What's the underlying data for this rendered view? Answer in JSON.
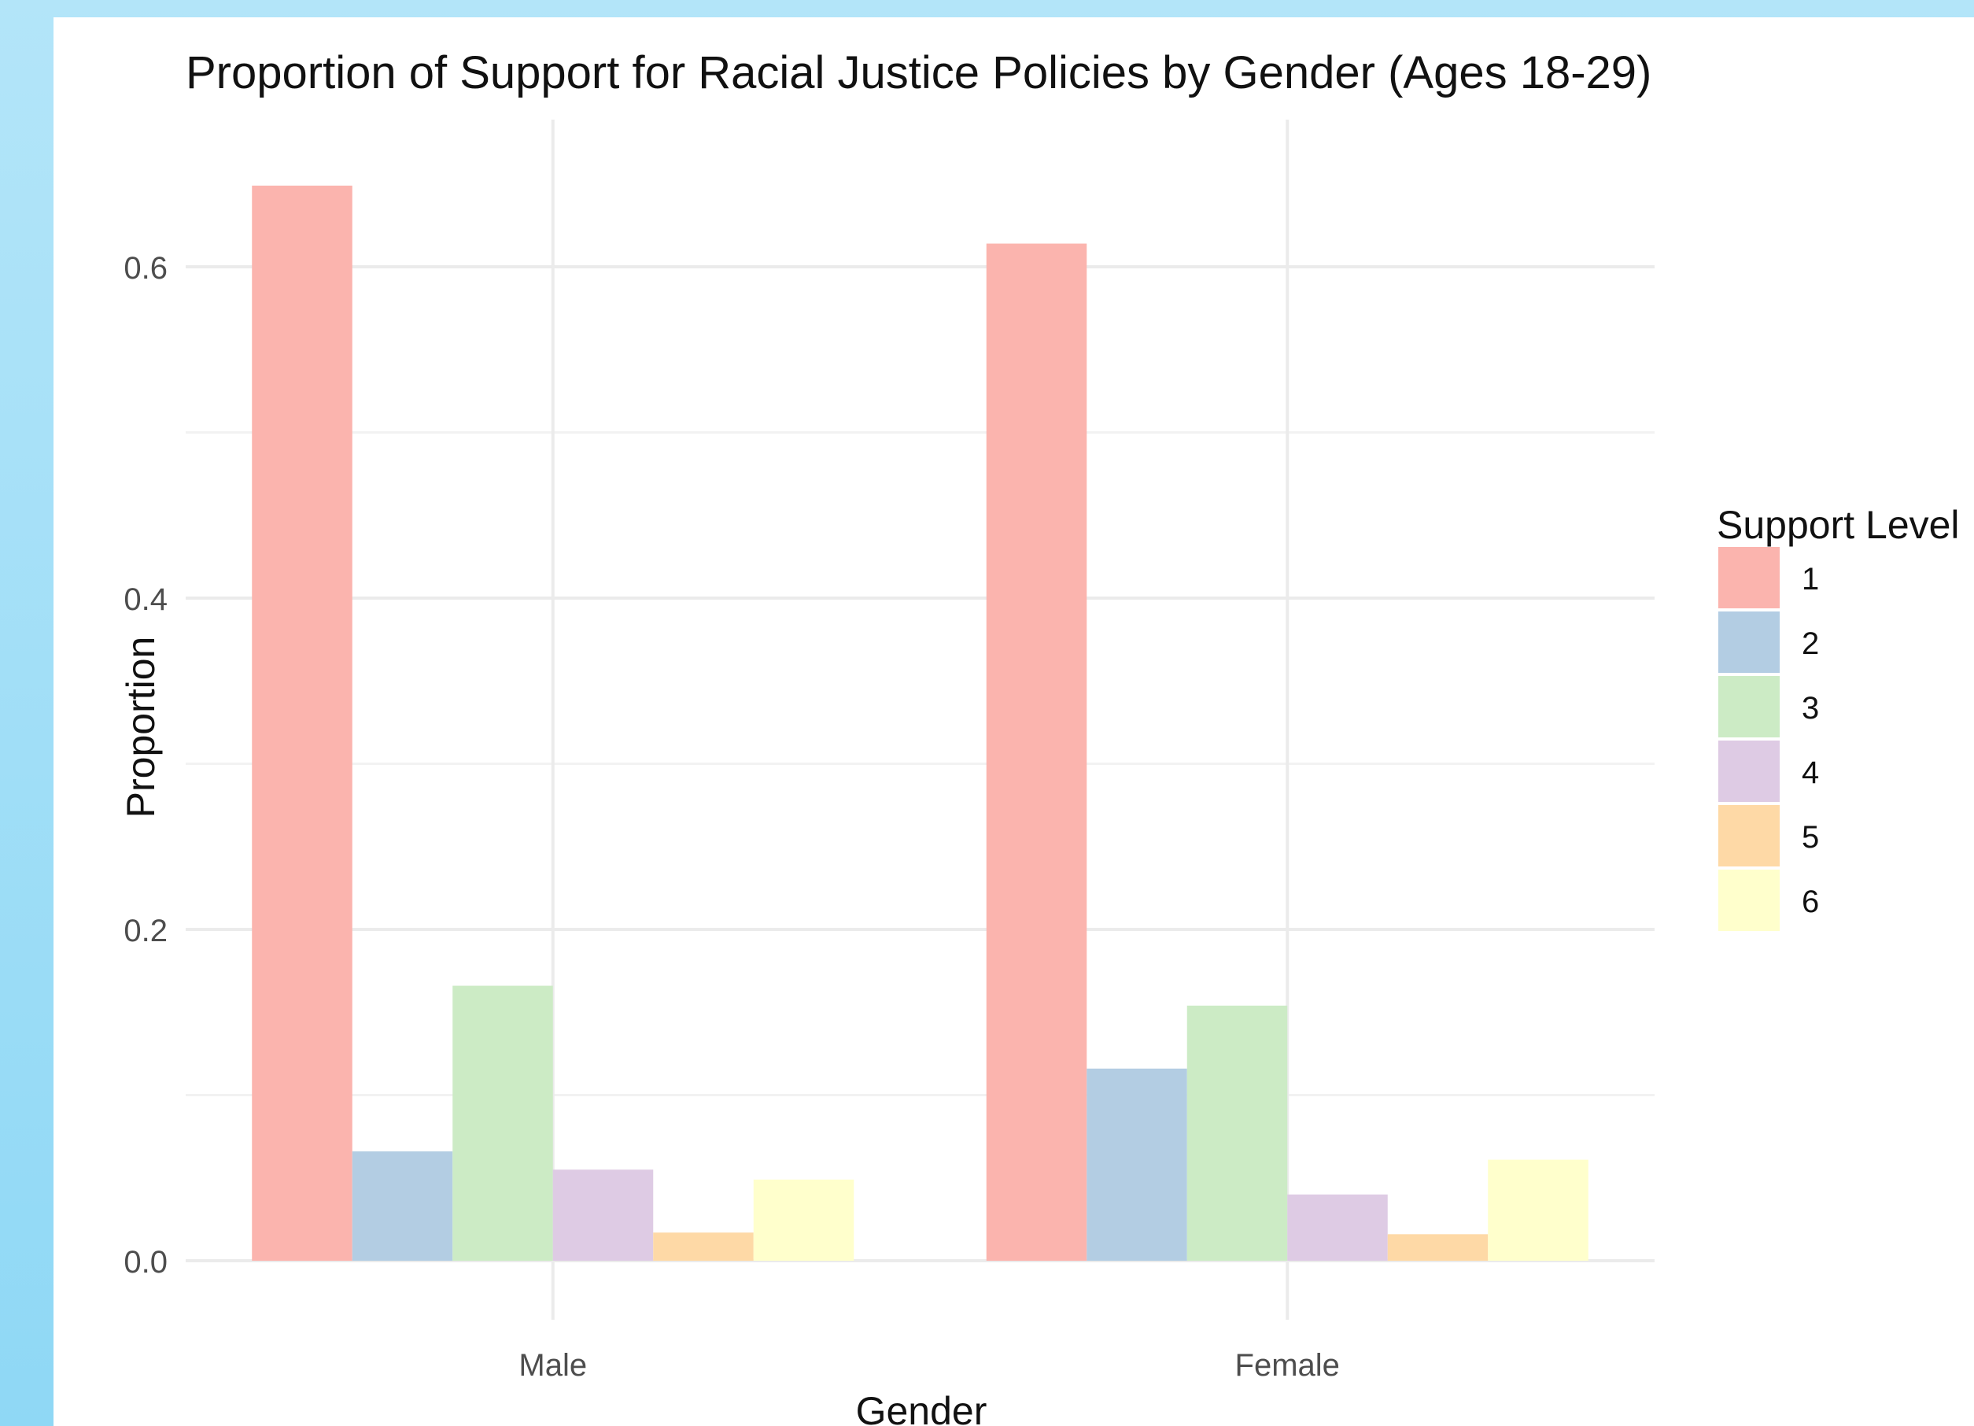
{
  "chart_data": {
    "type": "bar",
    "title": "Proportion of Support for Racial Justice Policies by Gender (Ages 18-29)",
    "xlabel": "Gender",
    "ylabel": "Proportion",
    "categories": [
      "Male",
      "Female"
    ],
    "ylim": [
      0,
      0.68
    ],
    "yticks": [
      0.0,
      0.2,
      0.4,
      0.6
    ],
    "ytick_labels": [
      "0.0",
      "0.2",
      "0.4",
      "0.6"
    ],
    "grid": true,
    "legend": {
      "title": "Support Level",
      "position": "right"
    },
    "series": [
      {
        "name": "1",
        "color": "#FBB4AE",
        "values": [
          0.649,
          0.614
        ]
      },
      {
        "name": "2",
        "color": "#B3CDE3",
        "values": [
          0.066,
          0.116
        ]
      },
      {
        "name": "3",
        "color": "#CCEBC5",
        "values": [
          0.166,
          0.154
        ]
      },
      {
        "name": "4",
        "color": "#DECBE4",
        "values": [
          0.055,
          0.04
        ]
      },
      {
        "name": "5",
        "color": "#FED9A6",
        "values": [
          0.017,
          0.016
        ]
      },
      {
        "name": "6",
        "color": "#FFFFCC",
        "values": [
          0.049,
          0.061
        ]
      }
    ]
  }
}
